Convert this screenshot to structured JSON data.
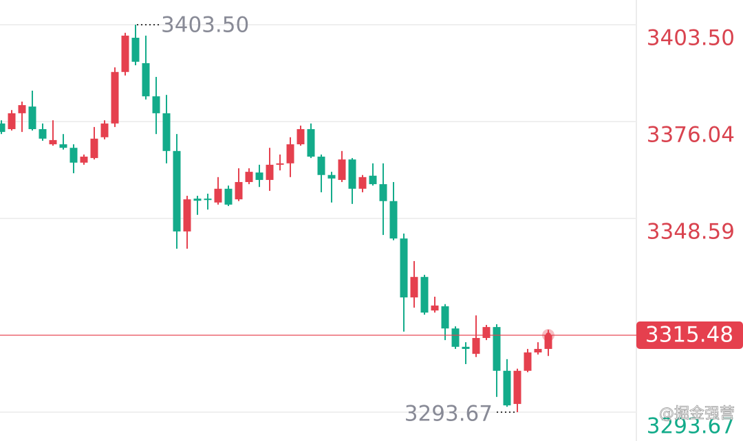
{
  "chart_data": {
    "type": "candlestick",
    "up_color": "#e5404e",
    "down_color": "#13ab8a",
    "ylim": [
      3285.5,
      3410.5
    ],
    "yticks": [
      {
        "value": 3403.5,
        "label": "3403.50"
      },
      {
        "value": 3376.04,
        "label": "3376.04"
      },
      {
        "value": 3348.59,
        "label": "3348.59"
      },
      {
        "value": 3293.67,
        "label": "3293.67"
      }
    ],
    "tick_color": "#d9434f",
    "low_tick_color": "#13ab8a",
    "grid": true,
    "open": [
      3375.5,
      3373.9,
      3378.4,
      3380.3,
      3373.9,
      3369.6,
      3369.6,
      3368.6,
      3364.4,
      3365.7,
      3371.6,
      3375.5,
      3390.1,
      3399.8,
      3392.6,
      3383.2,
      3378.4,
      3367.7,
      3344.9,
      3354.2,
      3354.2,
      3353.1,
      3357.0,
      3354.0,
      3358.9,
      3361.6,
      3359.5,
      3363.8,
      3364.2,
      3369.6,
      3373.9,
      3366.1,
      3360.9,
      3359.5,
      3365.3,
      3357.0,
      3360.7,
      3358.3,
      3353.5,
      3342.9,
      3326.2,
      3332.0,
      3322.5,
      3323.7,
      3317.4,
      3312.2,
      3310.2,
      3314.7,
      3317.8,
      3305.4,
      3296.0,
      3305.4,
      3310.6,
      3311.6
    ],
    "high": [
      3376.4,
      3379.3,
      3381.7,
      3384.8,
      3375.5,
      3376.4,
      3372.5,
      3369.6,
      3366.7,
      3374.5,
      3376.4,
      3391.4,
      3401.2,
      3403.5,
      3400.4,
      3388.7,
      3383.6,
      3372.5,
      3355.0,
      3355.0,
      3355.6,
      3360.3,
      3357.9,
      3362.8,
      3362.8,
      3363.8,
      3368.6,
      3366.7,
      3371.6,
      3374.9,
      3375.5,
      3366.7,
      3361.8,
      3367.7,
      3365.7,
      3360.9,
      3364.2,
      3364.2,
      3358.9,
      3344.3,
      3336.5,
      3332.6,
      3326.4,
      3324.3,
      3318.0,
      3313.5,
      3321.1,
      3318.4,
      3318.6,
      3308.7,
      3306.0,
      3311.6,
      3313.5,
      3317.0
    ],
    "low": [
      3372.5,
      3373.5,
      3373.1,
      3373.5,
      3370.6,
      3369.2,
      3368.1,
      3361.4,
      3363.8,
      3365.3,
      3371.0,
      3374.5,
      3389.1,
      3392.0,
      3382.3,
      3372.5,
      3364.2,
      3340.0,
      3340.0,
      3349.6,
      3351.1,
      3352.5,
      3352.1,
      3353.5,
      3358.3,
      3357.5,
      3356.4,
      3362.2,
      3360.3,
      3369.2,
      3365.7,
      3356.0,
      3353.1,
      3358.9,
      3352.7,
      3356.0,
      3357.9,
      3343.9,
      3342.4,
      3316.5,
      3323.3,
      3321.3,
      3321.9,
      3314.1,
      3311.6,
      3307.3,
      3309.3,
      3314.1,
      3298.0,
      3295.2,
      3293.67,
      3305.0,
      3310.0,
      3309.6
    ],
    "close": [
      3373.1,
      3378.4,
      3380.7,
      3373.9,
      3371.2,
      3370.8,
      3368.6,
      3364.4,
      3366.1,
      3371.2,
      3375.5,
      3390.1,
      3400.4,
      3393.0,
      3383.2,
      3378.4,
      3367.7,
      3344.9,
      3354.0,
      3353.6,
      3353.8,
      3357.0,
      3352.5,
      3358.9,
      3361.8,
      3359.5,
      3363.8,
      3364.2,
      3369.6,
      3373.9,
      3366.1,
      3360.9,
      3359.9,
      3365.3,
      3357.0,
      3360.3,
      3358.3,
      3353.5,
      3342.9,
      3326.2,
      3332.0,
      3321.9,
      3323.9,
      3317.4,
      3312.2,
      3311.6,
      3314.7,
      3317.8,
      3305.4,
      3295.6,
      3305.4,
      3310.6,
      3311.6,
      3315.48
    ],
    "high_marker": {
      "index": 13,
      "value": 3403.5,
      "label": "3403.50"
    },
    "low_marker": {
      "index": 50,
      "value": 3293.67,
      "label": "3293.67"
    },
    "current_price": {
      "value": 3315.48,
      "label": "3315.48",
      "color": "#e5404e"
    },
    "watermark": "@掘金强营"
  }
}
